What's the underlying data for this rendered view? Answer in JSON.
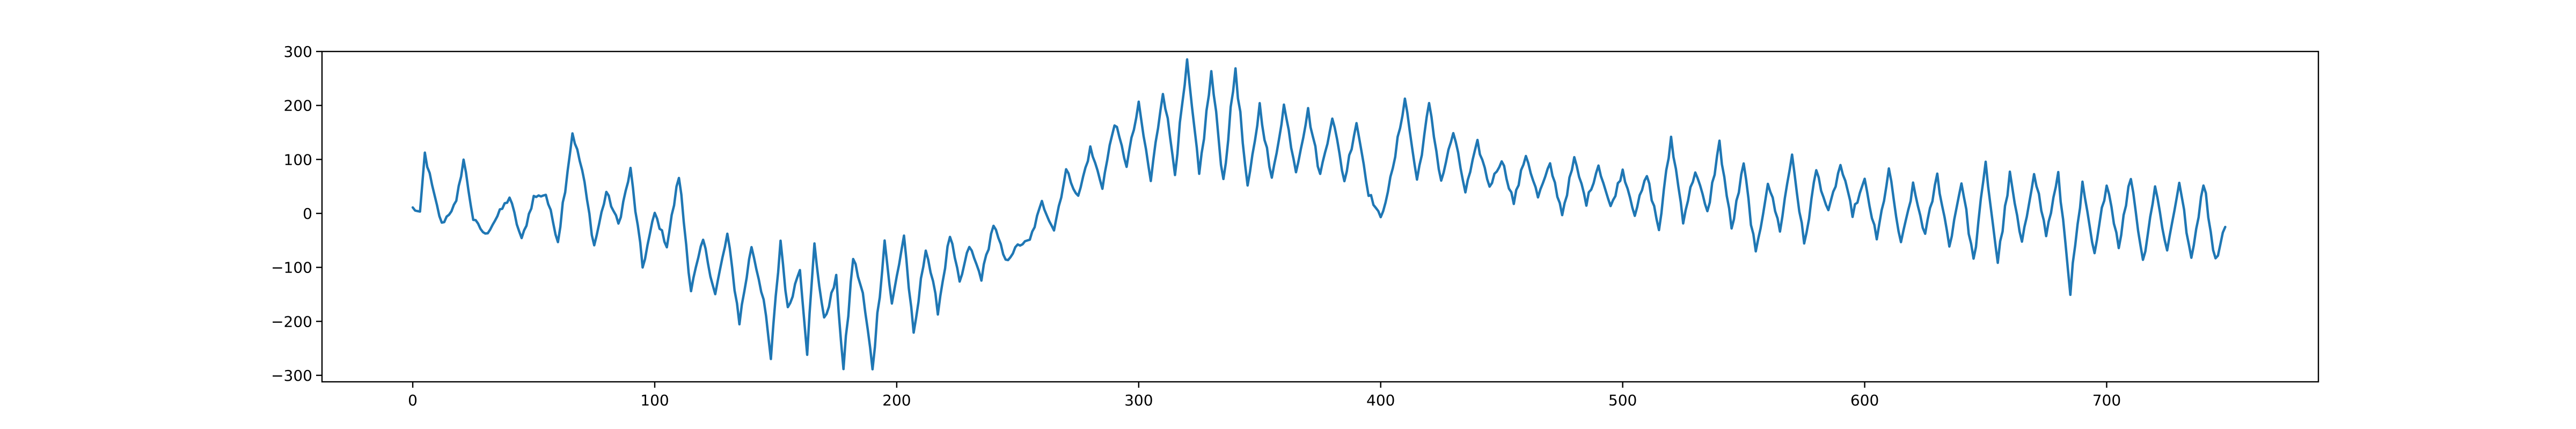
{
  "chart_data": {
    "type": "line",
    "title": "",
    "xlabel": "",
    "ylabel": "",
    "xlim": [
      -37.5,
      787.5
    ],
    "ylim": [
      -312,
      300
    ],
    "grid": false,
    "legend": null,
    "x_ticks": [
      0,
      100,
      200,
      300,
      400,
      500,
      600,
      700
    ],
    "x_tick_labels": [
      "0",
      "100",
      "200",
      "300",
      "400",
      "500",
      "600",
      "700"
    ],
    "y_ticks": [
      300,
      200,
      100,
      0,
      -100,
      -200,
      -300
    ],
    "y_tick_labels": [
      "300",
      "200",
      "100",
      "0",
      "−100",
      "−200",
      "−300"
    ],
    "series": [
      {
        "name": "series",
        "color": "#1f77b4",
        "x_start": 0,
        "x_step": 1,
        "keypoints": [
          [
            0,
            10
          ],
          [
            3,
            0
          ],
          [
            5,
            110
          ],
          [
            9,
            30
          ],
          [
            12,
            -20
          ],
          [
            18,
            20
          ],
          [
            21,
            100
          ],
          [
            25,
            -10
          ],
          [
            30,
            -40
          ],
          [
            40,
            30
          ],
          [
            45,
            -50
          ],
          [
            50,
            30
          ],
          [
            55,
            35
          ],
          [
            60,
            -50
          ],
          [
            66,
            150
          ],
          [
            70,
            80
          ],
          [
            75,
            -60
          ],
          [
            80,
            40
          ],
          [
            85,
            -20
          ],
          [
            90,
            80
          ],
          [
            95,
            -100
          ],
          [
            100,
            0
          ],
          [
            105,
            -60
          ],
          [
            110,
            70
          ],
          [
            115,
            -140
          ],
          [
            120,
            -50
          ],
          [
            125,
            -150
          ],
          [
            130,
            -40
          ],
          [
            135,
            -200
          ],
          [
            140,
            -60
          ],
          [
            145,
            -160
          ],
          [
            148,
            -270
          ],
          [
            152,
            -50
          ],
          [
            155,
            -180
          ],
          [
            160,
            -100
          ],
          [
            163,
            -255
          ],
          [
            166,
            -60
          ],
          [
            170,
            -200
          ],
          [
            175,
            -120
          ],
          [
            178,
            -290
          ],
          [
            182,
            -80
          ],
          [
            186,
            -150
          ],
          [
            190,
            -285
          ],
          [
            195,
            -50
          ],
          [
            198,
            -170
          ],
          [
            203,
            -40
          ],
          [
            207,
            -230
          ],
          [
            212,
            -60
          ],
          [
            217,
            -180
          ],
          [
            222,
            -40
          ],
          [
            226,
            -130
          ],
          [
            230,
            -60
          ],
          [
            235,
            -120
          ],
          [
            240,
            -20
          ],
          [
            245,
            -90
          ],
          [
            250,
            -60
          ],
          [
            255,
            -50
          ],
          [
            260,
            20
          ],
          [
            265,
            -30
          ],
          [
            270,
            80
          ],
          [
            275,
            30
          ],
          [
            280,
            120
          ],
          [
            285,
            50
          ],
          [
            290,
            170
          ],
          [
            295,
            90
          ],
          [
            300,
            200
          ],
          [
            305,
            60
          ],
          [
            310,
            230
          ],
          [
            315,
            80
          ],
          [
            320,
            275
          ],
          [
            325,
            70
          ],
          [
            330,
            260
          ],
          [
            335,
            60
          ],
          [
            340,
            270
          ],
          [
            345,
            40
          ],
          [
            350,
            200
          ],
          [
            355,
            60
          ],
          [
            360,
            200
          ],
          [
            365,
            80
          ],
          [
            370,
            190
          ],
          [
            375,
            70
          ],
          [
            380,
            180
          ],
          [
            385,
            60
          ],
          [
            390,
            170
          ],
          [
            395,
            40
          ],
          [
            400,
            -10
          ],
          [
            405,
            80
          ],
          [
            410,
            215
          ],
          [
            415,
            60
          ],
          [
            420,
            200
          ],
          [
            425,
            60
          ],
          [
            430,
            150
          ],
          [
            435,
            40
          ],
          [
            440,
            130
          ],
          [
            445,
            50
          ],
          [
            450,
            100
          ],
          [
            455,
            20
          ],
          [
            460,
            110
          ],
          [
            465,
            30
          ],
          [
            470,
            90
          ],
          [
            475,
            0
          ],
          [
            480,
            100
          ],
          [
            485,
            20
          ],
          [
            490,
            90
          ],
          [
            495,
            10
          ],
          [
            500,
            80
          ],
          [
            505,
            0
          ],
          [
            510,
            70
          ],
          [
            515,
            -30
          ],
          [
            520,
            140
          ],
          [
            525,
            -10
          ],
          [
            530,
            80
          ],
          [
            535,
            0
          ],
          [
            540,
            130
          ],
          [
            545,
            -30
          ],
          [
            550,
            90
          ],
          [
            555,
            -80
          ],
          [
            560,
            60
          ],
          [
            565,
            -30
          ],
          [
            570,
            110
          ],
          [
            575,
            -60
          ],
          [
            580,
            80
          ],
          [
            585,
            0
          ],
          [
            590,
            90
          ],
          [
            595,
            0
          ],
          [
            600,
            60
          ],
          [
            605,
            -50
          ],
          [
            610,
            80
          ],
          [
            615,
            -60
          ],
          [
            620,
            50
          ],
          [
            625,
            -40
          ],
          [
            630,
            70
          ],
          [
            635,
            -60
          ],
          [
            640,
            60
          ],
          [
            645,
            -90
          ],
          [
            650,
            90
          ],
          [
            655,
            -90
          ],
          [
            660,
            70
          ],
          [
            665,
            -60
          ],
          [
            670,
            80
          ],
          [
            675,
            -40
          ],
          [
            680,
            70
          ],
          [
            685,
            -140
          ],
          [
            690,
            50
          ],
          [
            695,
            -80
          ],
          [
            700,
            60
          ],
          [
            705,
            -60
          ],
          [
            710,
            70
          ],
          [
            715,
            -90
          ],
          [
            720,
            50
          ],
          [
            725,
            -70
          ],
          [
            730,
            60
          ],
          [
            735,
            -90
          ],
          [
            740,
            60
          ],
          [
            745,
            -90
          ],
          [
            749,
            -20
          ]
        ]
      }
    ]
  }
}
